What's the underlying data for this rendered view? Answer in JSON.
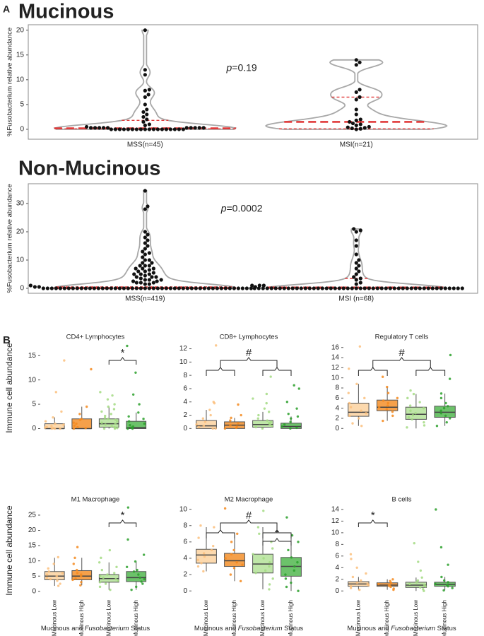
{
  "chart_data": [
    {
      "type": "violin",
      "panel_label": "A",
      "title": "Mucinous",
      "ylabel": "%Fusobacterium relative abundance",
      "categories": [
        "MSS(n=45)",
        "MSI(n=21)"
      ],
      "groups": [
        {
          "values": [
            20,
            12,
            11,
            8,
            7.8,
            7,
            6.5,
            5,
            4,
            3.5,
            3,
            2.5,
            2,
            1.5,
            1,
            0.8,
            0.5,
            0.3,
            0.3,
            0.3,
            0.3,
            0.3,
            0.3,
            0.3,
            0.3,
            0.3,
            0.3,
            0,
            0,
            0,
            0,
            0,
            0,
            0,
            0,
            0,
            0,
            0,
            0,
            0,
            0,
            0,
            0,
            0,
            0
          ],
          "quartiles": [
            0.1,
            0.2,
            1.8
          ]
        },
        {
          "values": [
            14,
            13.5,
            13,
            8,
            7.5,
            6.5,
            6,
            4,
            3,
            2,
            1.8,
            1.5,
            1.2,
            1,
            0.8,
            0.5,
            0.4,
            0.3,
            0.2,
            0.1,
            0
          ],
          "quartiles": [
            0.1,
            1.5,
            6.5
          ]
        }
      ],
      "annotation": [
        "p",
        "=0.19"
      ],
      "ylim": [
        -2,
        21.1
      ],
      "yticks": [
        0,
        5,
        10,
        15,
        20
      ],
      "point_color": "#111",
      "outline_color": "#a8a8a8",
      "quartile_color": "#e03a3a"
    },
    {
      "type": "violin",
      "title": "Non-Mucinous",
      "ylabel": "%Fusobacterium relative abundance",
      "categories": [
        "MSS(n=419)",
        "MSI (n=68)"
      ],
      "groups": [
        {
          "values": [
            34.5,
            29,
            28,
            20,
            19,
            18,
            17,
            16,
            15,
            14,
            13,
            12.5,
            12,
            11,
            10,
            10,
            9,
            9,
            8,
            8,
            8,
            7,
            7,
            7,
            6.5,
            6,
            6,
            5.5,
            5,
            5,
            5,
            4.5,
            4,
            4,
            4,
            3.5,
            3,
            3,
            3,
            2.5,
            2.5,
            2,
            2,
            2,
            1.5,
            1.5,
            1,
            1,
            1,
            0.5,
            0.5,
            0.5,
            0,
            0,
            0,
            0,
            0,
            0,
            0,
            0,
            0,
            0,
            0,
            0,
            0,
            0,
            0,
            0,
            0,
            0,
            0,
            0,
            0,
            0,
            0,
            0,
            0,
            0,
            0,
            0,
            0,
            0,
            0,
            0,
            0,
            0,
            0,
            0,
            0,
            0,
            0,
            0,
            0,
            0,
            0,
            0,
            0,
            0,
            0,
            0,
            0,
            0
          ],
          "quartiles": [
            0,
            0.1,
            0.5
          ]
        },
        {
          "values": [
            21,
            20.5,
            20,
            17,
            15,
            12,
            10,
            9,
            8,
            7,
            6,
            5,
            4,
            3.5,
            3,
            2,
            1.5,
            1,
            0,
            0,
            0,
            0,
            0,
            0,
            0,
            0,
            0,
            0,
            0,
            0,
            0,
            0,
            0,
            0,
            0,
            0,
            0,
            0,
            0,
            0,
            0,
            0,
            0,
            0,
            0,
            0,
            0,
            0,
            0,
            0,
            0,
            0,
            0,
            0,
            0,
            0,
            0,
            0,
            0,
            0,
            0,
            0,
            0,
            0,
            0,
            0,
            0,
            0
          ],
          "quartiles": [
            0,
            0.3,
            3.5
          ]
        }
      ],
      "annotation": [
        "p",
        "=0.0002"
      ],
      "ylim": [
        -1.75,
        37
      ],
      "yticks": [
        0,
        10,
        20,
        30
      ],
      "point_color": "#111",
      "outline_color": "#a8a8a8",
      "quartile_color": "#e03a3a"
    },
    {
      "type": "box",
      "panel_label": "B",
      "title": "CD4+ Lymphocytes",
      "ylabel": "Immune cell abundance",
      "ylim": [
        -0.8,
        17.5
      ],
      "yticks": [
        0,
        5,
        10,
        15
      ],
      "colors": [
        "#fcd9ae",
        "#f5a04a",
        "#bfe6a8",
        "#6cc26a"
      ],
      "point_colors": [
        "#fbc07c",
        "#f58a1f",
        "#a3da82",
        "#2ca02c"
      ],
      "boxes": [
        {
          "stats": [
            0,
            0,
            0,
            1,
            2.3
          ],
          "points": [
            14,
            7.5,
            3.5,
            2.3,
            1.5,
            1,
            0.8,
            0.5,
            0.3,
            0.2,
            0.1,
            0,
            0,
            0
          ]
        },
        {
          "stats": [
            0,
            0,
            0,
            2,
            4.5
          ],
          "points": [
            12.2,
            4.5,
            3,
            2,
            1.8,
            1.2,
            1,
            0.6,
            0.3,
            0.1,
            0
          ]
        },
        {
          "stats": [
            0,
            0.3,
            1,
            2,
            4.5
          ],
          "points": [
            7.5,
            6.8,
            6,
            5,
            4.5,
            4,
            3.5,
            3,
            2.6,
            2.2,
            2,
            1.8,
            1.5,
            1.2,
            1,
            0.8,
            0.5,
            0.3,
            0.2,
            0.1,
            0,
            0
          ]
        },
        {
          "stats": [
            0,
            0,
            0.2,
            1.5,
            3.3
          ],
          "points": [
            17,
            11.5,
            7,
            5,
            3.3,
            2.5,
            2,
            1.5,
            1,
            0.7,
            0.4,
            0.2,
            0,
            0
          ]
        }
      ],
      "annotations": [
        {
          "text": "*",
          "groups": [
            [
              2,
              3
            ]
          ]
        }
      ]
    },
    {
      "type": "box",
      "title": "CD8+ Lymphocytes",
      "ylim": [
        -0.6,
        12.8
      ],
      "yticks": [
        0,
        2,
        4,
        6,
        8,
        10,
        12
      ],
      "colors": [
        "#fcd9ae",
        "#f5a04a",
        "#bfe6a8",
        "#6cc26a"
      ],
      "point_colors": [
        "#fbc07c",
        "#f58a1f",
        "#a3da82",
        "#2ca02c"
      ],
      "boxes": [
        {
          "stats": [
            0,
            0,
            0.4,
            1.2,
            2.8
          ],
          "points": [
            12.5,
            4,
            3.8,
            2.8,
            2,
            1.5,
            1,
            0.6,
            0.4,
            0.2,
            0,
            0
          ]
        },
        {
          "stats": [
            0,
            0,
            0.5,
            1,
            1.6
          ],
          "points": [
            3.6,
            2,
            1.6,
            1.2,
            0.8,
            0.5,
            0.3,
            0.1,
            0
          ]
        },
        {
          "stats": [
            0,
            0.2,
            0.6,
            1.2,
            2.5
          ],
          "points": [
            7.8,
            5.2,
            4.5,
            3.8,
            3,
            2.5,
            2,
            1.5,
            1.2,
            1,
            0.8,
            0.6,
            0.4,
            0.2,
            0
          ]
        },
        {
          "stats": [
            0,
            0,
            0.3,
            0.8,
            1.8
          ],
          "points": [
            6.5,
            6,
            4,
            3,
            2.2,
            1.8,
            1.5,
            1,
            0.6,
            0.3,
            0.1,
            0
          ]
        }
      ],
      "annotations": [
        {
          "text": "#",
          "groups": [
            [
              0,
              1
            ],
            [
              2,
              3
            ]
          ]
        }
      ]
    },
    {
      "type": "box",
      "title": "Regulatory T cells",
      "ylim": [
        -0.8,
        16.8
      ],
      "yticks": [
        0,
        2,
        4,
        6,
        8,
        10,
        12,
        14,
        16
      ],
      "colors": [
        "#fcd9ae",
        "#f5a04a",
        "#bfe6a8",
        "#6cc26a"
      ],
      "point_colors": [
        "#fbc07c",
        "#f58a1f",
        "#a3da82",
        "#2ca02c"
      ],
      "boxes": [
        {
          "stats": [
            0.5,
            2.4,
            3.2,
            5,
            8.8
          ],
          "points": [
            16.2,
            11.8,
            8.8,
            7,
            6,
            5,
            4.2,
            3.5,
            3,
            2.5,
            2,
            1,
            0.5
          ]
        },
        {
          "stats": [
            1.5,
            3.5,
            4.2,
            5.6,
            8.2
          ],
          "points": [
            10.2,
            8.2,
            7,
            6,
            5.5,
            5,
            4.5,
            4.2,
            3.8,
            3.3,
            2.5,
            1.5
          ]
        },
        {
          "stats": [
            0,
            1.8,
            2.8,
            4.2,
            6.8
          ],
          "points": [
            7.5,
            6.8,
            6,
            5.2,
            4.5,
            4,
            3.5,
            3,
            2.6,
            2.2,
            1.8,
            1.2,
            0.6,
            0.2
          ]
        },
        {
          "stats": [
            0.5,
            2.2,
            3.2,
            4.4,
            6.9
          ],
          "points": [
            14.5,
            9.8,
            6.9,
            6,
            5,
            4.4,
            4,
            3.5,
            3,
            2.5,
            2,
            1.2,
            0.5
          ]
        }
      ],
      "annotations": [
        {
          "text": "#",
          "groups": [
            [
              0,
              1
            ],
            [
              2,
              3
            ]
          ]
        }
      ]
    },
    {
      "type": "box",
      "title": "M1 Macrophage",
      "ylabel": "Immune cell abundance",
      "categories": [
        "Mucinous Low",
        "Mucinous High",
        "Non-Mucinous Low",
        "Non-Mucinous High"
      ],
      "xlabel": [
        "Mucinous and ",
        "Fusobacterium",
        " Status"
      ],
      "ylim": [
        -1.2,
        28
      ],
      "yticks": [
        0,
        5,
        10,
        15,
        20,
        25
      ],
      "colors": [
        "#fcd9ae",
        "#f5a04a",
        "#bfe6a8",
        "#6cc26a"
      ],
      "point_colors": [
        "#fbc07c",
        "#f58a1f",
        "#a3da82",
        "#2ca02c"
      ],
      "boxes": [
        {
          "stats": [
            1.8,
            3.8,
            5,
            6.5,
            11
          ],
          "points": [
            11.2,
            9,
            7.5,
            6.5,
            6,
            5.5,
            5,
            4.5,
            4,
            3.5,
            2.5,
            1.8
          ]
        },
        {
          "stats": [
            2,
            3.8,
            5,
            6.8,
            11
          ],
          "points": [
            14.5,
            11,
            9,
            7,
            6,
            5.5,
            5,
            4.2,
            3.8,
            3,
            2
          ]
        },
        {
          "stats": [
            0.5,
            3,
            4.2,
            5.5,
            9.5
          ],
          "points": [
            13.5,
            11,
            9.5,
            8,
            7,
            6,
            5.5,
            5,
            4.5,
            4,
            3.5,
            3,
            2.5,
            1.5,
            0.5
          ]
        },
        {
          "stats": [
            0.5,
            3.2,
            4.5,
            6.5,
            9.8
          ],
          "points": [
            27.5,
            17,
            12,
            9.8,
            8,
            7,
            6.5,
            5.5,
            4.5,
            4,
            3.2,
            2.5,
            1.5,
            0.5
          ]
        }
      ],
      "annotations": [
        {
          "text": "*",
          "groups": [
            [
              2,
              3
            ]
          ]
        }
      ]
    },
    {
      "type": "box",
      "title": "M2 Macrophage",
      "categories": [
        "Mucinous Low",
        "Mucinous High",
        "Non-Mucinous Low",
        "Non-Mucinous High"
      ],
      "xlabel": [
        "Mucinous and ",
        "Fusobacterium",
        " Status"
      ],
      "ylim": [
        -0.5,
        10.4
      ],
      "yticks": [
        0,
        2,
        4,
        6,
        8,
        10
      ],
      "colors": [
        "#fcd9ae",
        "#f5a04a",
        "#bfe6a8",
        "#6cc26a"
      ],
      "point_colors": [
        "#fbc07c",
        "#f58a1f",
        "#a3da82",
        "#2ca02c"
      ],
      "boxes": [
        {
          "stats": [
            2.4,
            3.4,
            4.4,
            5.1,
            7.8
          ],
          "points": [
            8,
            7.8,
            6.5,
            5.5,
            5,
            4.6,
            4.2,
            3.8,
            3.4,
            3,
            2.4
          ]
        },
        {
          "stats": [
            1.2,
            3,
            3.7,
            4.6,
            7
          ],
          "points": [
            10.1,
            7,
            6,
            5,
            4.5,
            4,
            3.5,
            3.2,
            2.8,
            2,
            1.2
          ]
        },
        {
          "stats": [
            0.2,
            2.2,
            3.3,
            4.5,
            7.8
          ],
          "points": [
            9.8,
            7.8,
            7,
            6,
            5.2,
            4.5,
            4,
            3.5,
            3,
            2.5,
            2.2,
            1.5,
            0.8,
            0.2
          ]
        },
        {
          "stats": [
            0,
            1.8,
            3,
            4.1,
            6.8
          ],
          "points": [
            9,
            6.8,
            6,
            5,
            4.1,
            3.5,
            3,
            2.5,
            2,
            1.5,
            1,
            0.5,
            0
          ]
        }
      ],
      "annotations": [
        {
          "text": "#",
          "groups": [
            [
              0,
              1
            ],
            [
              2,
              3
            ]
          ]
        },
        {
          "text": "*",
          "groups": [
            [
              2,
              3
            ]
          ]
        }
      ]
    },
    {
      "type": "box",
      "title": "B cells",
      "categories": [
        "Mucinous Low",
        "Mucinous High",
        "Non-Mucinous Low",
        "Non-Mucinous High"
      ],
      "xlabel": [
        "Mucinous and ",
        "Fusobacterium",
        " Status"
      ],
      "ylim": [
        -0.7,
        14.6
      ],
      "yticks": [
        0,
        2,
        4,
        6,
        8,
        10,
        12,
        14
      ],
      "colors": [
        "#fcd9ae",
        "#f5a04a",
        "#bfe6a8",
        "#6cc26a"
      ],
      "point_colors": [
        "#fbc07c",
        "#f58a1f",
        "#a3da82",
        "#2ca02c"
      ],
      "boxes": [
        {
          "stats": [
            0.2,
            0.8,
            1.2,
            1.6,
            2.4
          ],
          "points": [
            6.3,
            5.5,
            4,
            3,
            2.4,
            1.8,
            1.4,
            1.2,
            1,
            0.8,
            0.5,
            0.2
          ]
        },
        {
          "stats": [
            0.2,
            0.8,
            1,
            1.4,
            2
          ],
          "points": [
            2,
            1.7,
            1.4,
            1.2,
            1,
            0.9,
            0.7,
            0.4,
            0.2
          ]
        },
        {
          "stats": [
            0,
            0.6,
            1,
            1.5,
            2.3
          ],
          "points": [
            8.2,
            5,
            3.5,
            2.3,
            1.8,
            1.5,
            1.2,
            1,
            0.8,
            0.6,
            0.3,
            0
          ]
        },
        {
          "stats": [
            0.1,
            0.8,
            1.1,
            1.5,
            2.4
          ],
          "points": [
            14,
            7.5,
            4.5,
            2.4,
            1.8,
            1.5,
            1.2,
            1,
            0.8,
            0.5,
            0.1
          ]
        }
      ],
      "annotations": [
        {
          "text": "*",
          "groups": [
            [
              0,
              1
            ]
          ]
        }
      ]
    }
  ]
}
